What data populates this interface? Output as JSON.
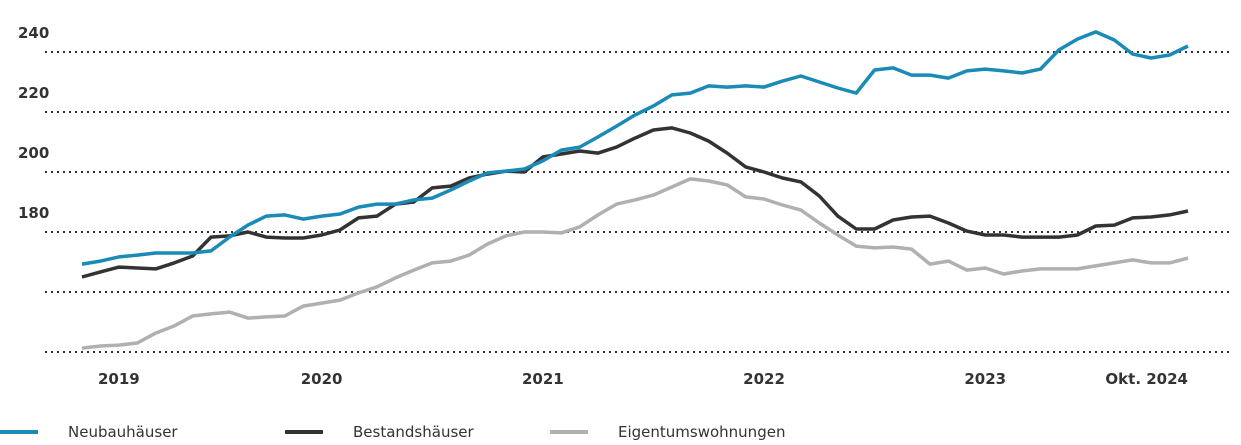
{
  "chart_data": {
    "type": "line",
    "categories": [
      null,
      null,
      "2019",
      null,
      null,
      null,
      null,
      null,
      null,
      null,
      null,
      null,
      null,
      "2020",
      null,
      null,
      null,
      null,
      null,
      null,
      null,
      null,
      null,
      null,
      null,
      "2021",
      null,
      null,
      null,
      null,
      null,
      null,
      null,
      null,
      null,
      null,
      null,
      "2022",
      null,
      null,
      null,
      null,
      null,
      null,
      null,
      null,
      null,
      null,
      null,
      "2023",
      null,
      null,
      null,
      null,
      null,
      null,
      null,
      null,
      null,
      null,
      "Okt. 2024"
    ],
    "series": [
      {
        "name": "Neubauhäuser",
        "color": "#1a8ab6",
        "values": [
          169.3,
          170.3,
          171.7,
          172.3,
          173,
          173,
          173,
          173.7,
          178.3,
          182.3,
          185.3,
          185.7,
          184.3,
          185.3,
          186,
          188.3,
          189.3,
          189.3,
          190.7,
          191.3,
          194,
          197,
          199.7,
          200.3,
          201,
          203.7,
          207.3,
          208.3,
          211.7,
          215.3,
          219,
          222,
          225.7,
          226.3,
          228.7,
          228.3,
          228.7,
          228.3,
          230.3,
          232,
          230,
          228,
          226.3,
          234,
          234.7,
          232.3,
          232.3,
          231.3,
          233.7,
          234.3,
          233.7,
          233,
          234.3,
          240.7,
          244.3,
          246.7,
          244,
          239.3,
          238,
          239,
          242
        ]
      },
      {
        "name": "Bestandshäuser",
        "color": "#333333",
        "values": [
          165,
          166.7,
          168.3,
          168,
          167.7,
          169.7,
          172,
          178.3,
          178.7,
          180,
          178.3,
          178,
          178,
          179,
          180.7,
          184.7,
          185.3,
          189.3,
          190,
          194.7,
          195.3,
          198,
          199.3,
          200.3,
          200,
          205,
          206,
          207,
          206.3,
          208.3,
          211.3,
          214,
          214.7,
          213,
          210.3,
          206.3,
          201.7,
          200,
          198,
          196.7,
          192,
          185.3,
          181,
          181,
          184,
          185,
          185.3,
          183,
          180.3,
          179,
          179,
          178.3,
          178.3,
          178.3,
          179,
          182,
          182.3,
          184.7,
          185,
          185.7,
          187
        ]
      },
      {
        "name": "Eigentumswohnungen",
        "color": "#b0b0b0",
        "values": [
          141.3,
          142,
          142.3,
          143,
          146.3,
          148.7,
          152,
          152.7,
          153.3,
          151.3,
          151.7,
          152,
          155.3,
          156.3,
          157.3,
          159.7,
          161.7,
          164.7,
          167.3,
          169.7,
          170.3,
          172.3,
          176,
          178.7,
          180,
          180,
          179.7,
          181.7,
          185.7,
          189.3,
          190.7,
          192.3,
          195,
          197.7,
          197,
          195.7,
          191.7,
          191,
          189,
          187.3,
          183,
          179,
          175.3,
          174.7,
          175,
          174.3,
          169.3,
          170.3,
          167.3,
          168,
          166,
          167,
          167.7,
          167.7,
          167.7,
          168.7,
          169.7,
          170.7,
          169.7,
          169.7,
          171.3
        ]
      }
    ],
    "ylim": [
      140,
      250
    ],
    "yticks": [
      180,
      200,
      220,
      240
    ],
    "gridlines": [
      140,
      160,
      180,
      200,
      220,
      240
    ],
    "grid": true,
    "legend": "bottom"
  }
}
